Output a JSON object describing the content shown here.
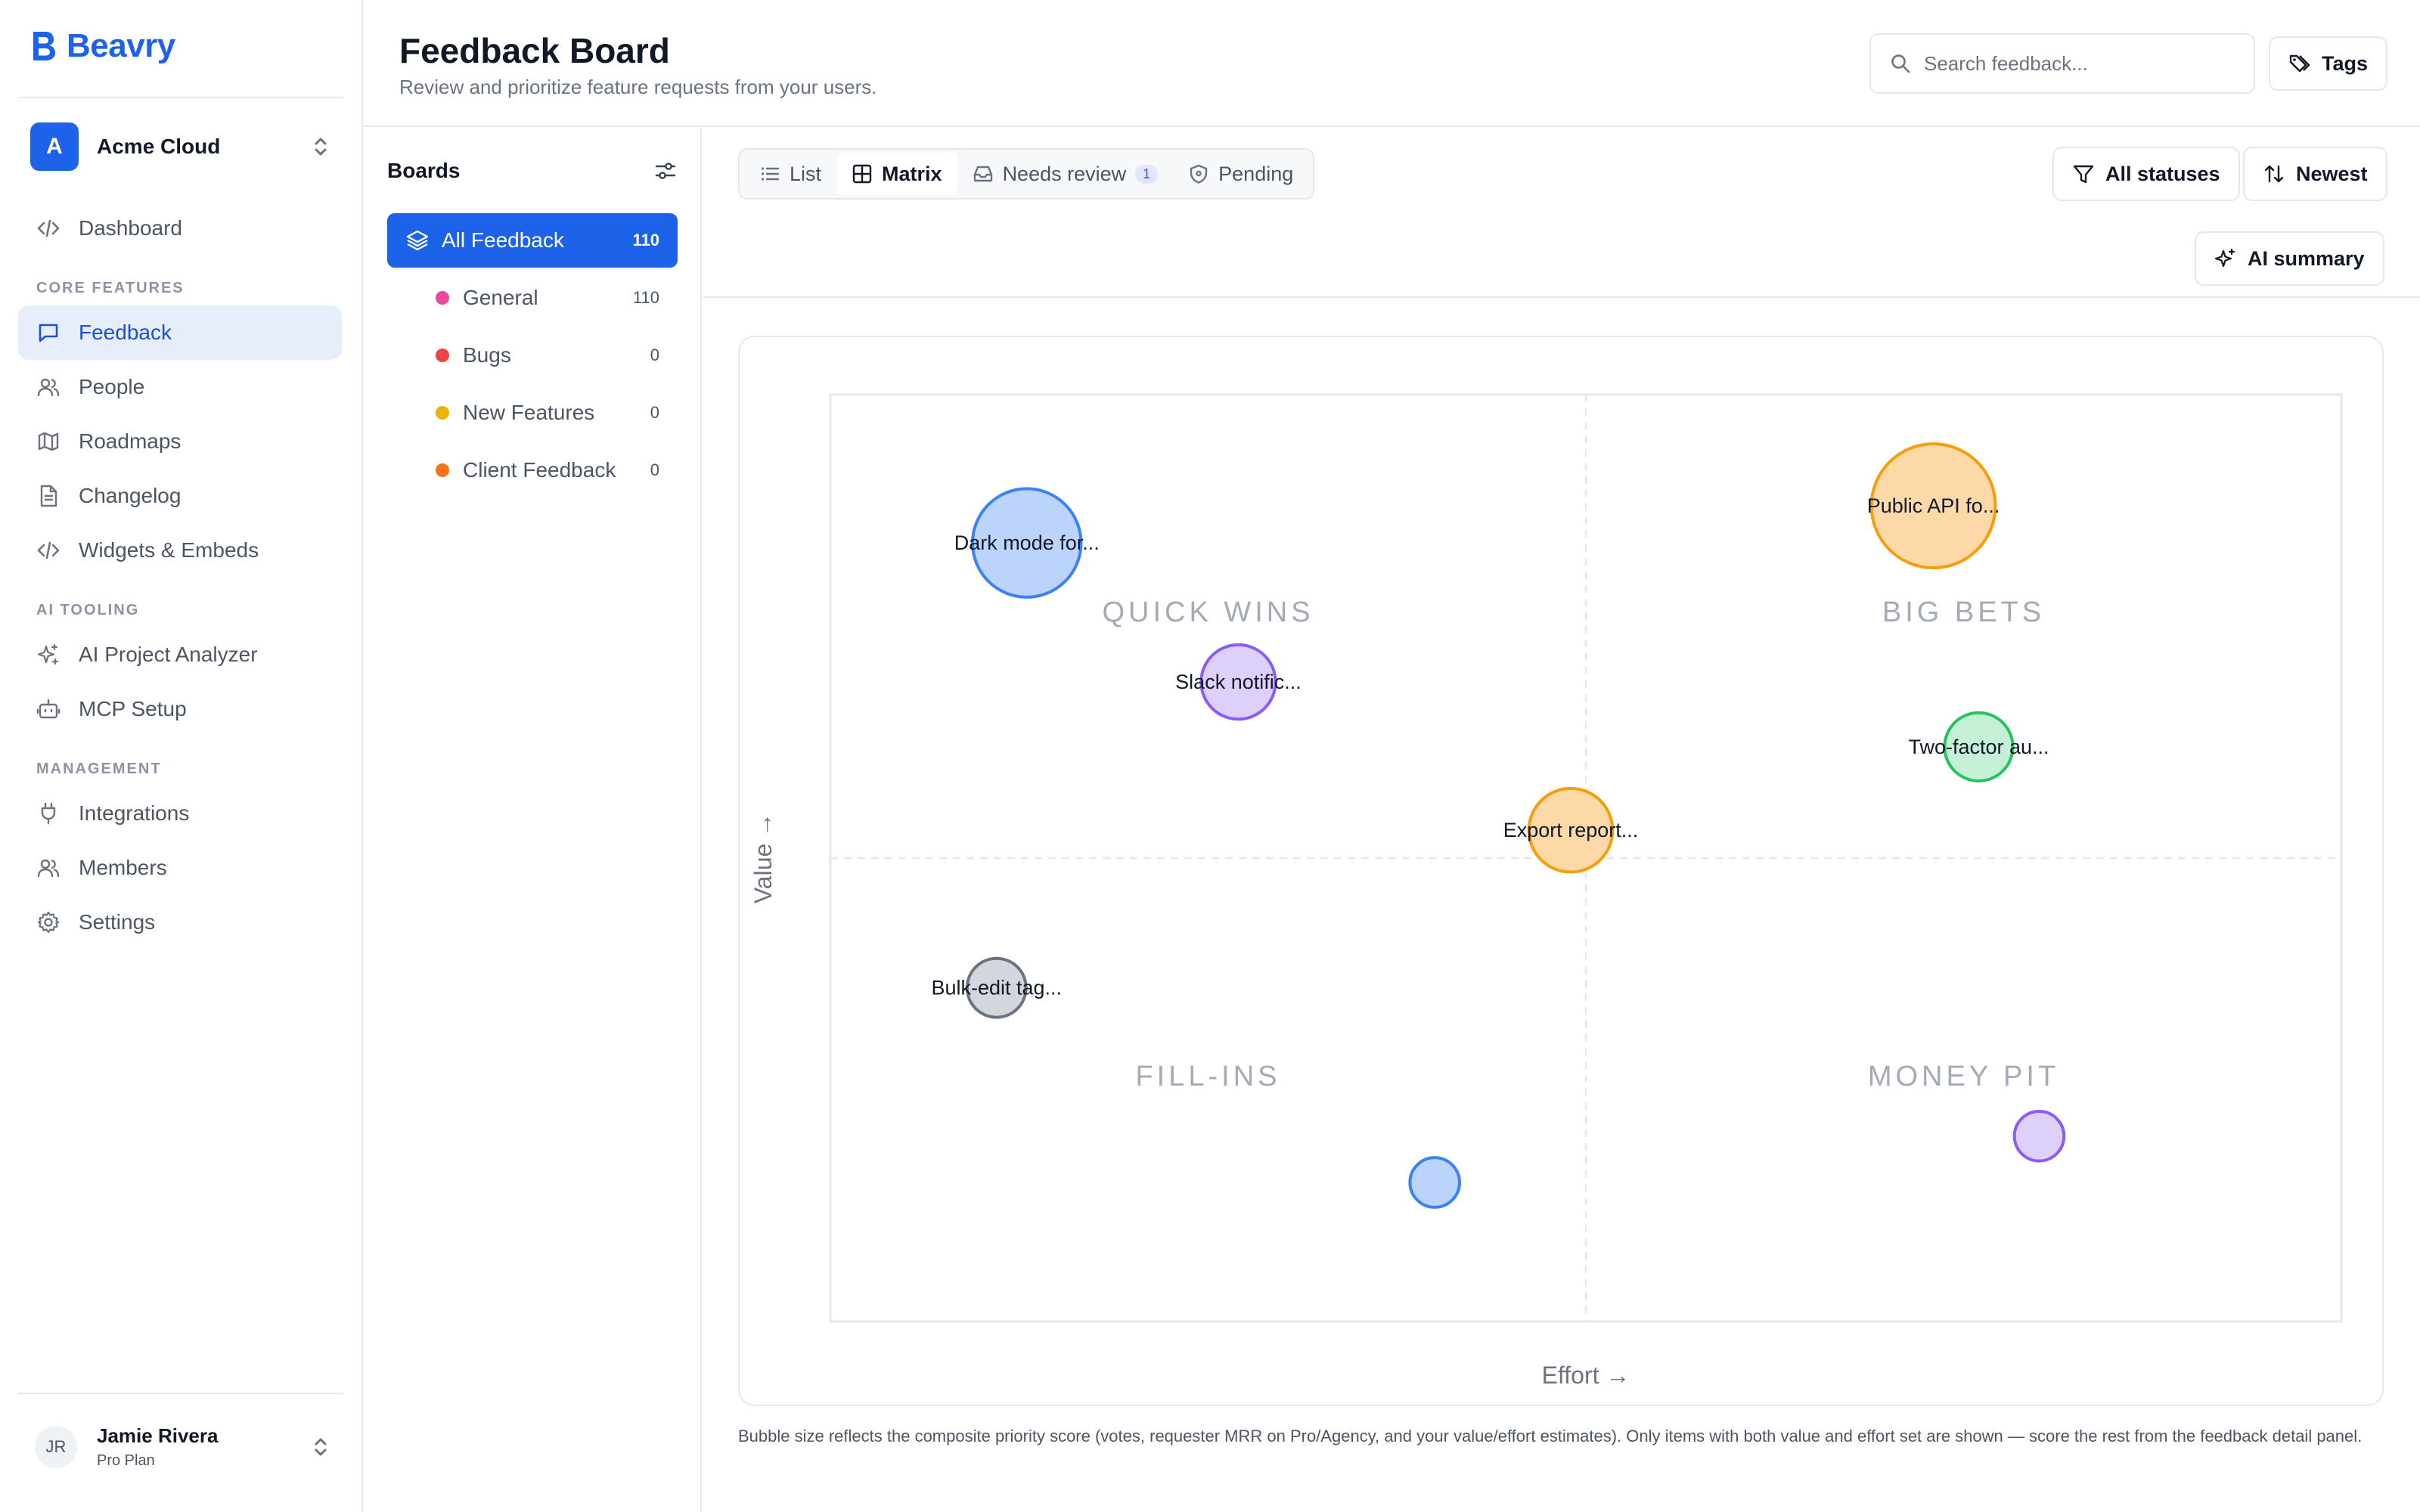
{
  "app": {
    "name": "Beavry"
  },
  "workspace": {
    "initial": "A",
    "name": "Acme Cloud"
  },
  "nav": {
    "dashboard": "Dashboard",
    "core_label": "CORE FEATURES",
    "feedback": "Feedback",
    "people": "People",
    "roadmaps": "Roadmaps",
    "changelog": "Changelog",
    "widgets": "Widgets & Embeds",
    "ai_label": "AI TOOLING",
    "ai_analyzer": "AI Project Analyzer",
    "mcp": "MCP Setup",
    "mgmt_label": "MANAGEMENT",
    "integrations": "Integrations",
    "members": "Members",
    "settings": "Settings"
  },
  "user": {
    "initials": "JR",
    "name": "Jamie Rivera",
    "plan": "Pro Plan"
  },
  "header": {
    "title": "Feedback Board",
    "subtitle": "Review and prioritize feature requests from your users.",
    "search_placeholder": "Search feedback...",
    "tags_label": "Tags"
  },
  "boards": {
    "title": "Boards",
    "all": {
      "name": "All Feedback",
      "count": "110"
    },
    "items": [
      {
        "name": "General",
        "count": "110",
        "color": "#ec4899"
      },
      {
        "name": "Bugs",
        "count": "0",
        "color": "#ef4444"
      },
      {
        "name": "New Features",
        "count": "0",
        "color": "#eab308"
      },
      {
        "name": "Client Feedback",
        "count": "0",
        "color": "#f97316"
      }
    ]
  },
  "toolbar": {
    "tabs": {
      "list": "List",
      "matrix": "Matrix",
      "needs_review": "Needs review",
      "needs_review_count": "1",
      "pending": "Pending"
    },
    "statuses": "All statuses",
    "sort": "Newest",
    "ai_summary": "AI summary"
  },
  "chart_data": {
    "type": "scatter",
    "x_axis_label": "Effort →",
    "y_axis_label": "Value →",
    "xlim": [
      0,
      100
    ],
    "ylim": [
      0,
      100
    ],
    "quadrants": [
      "QUICK WINS",
      "BIG BETS",
      "FILL-INS",
      "MONEY PIT"
    ],
    "points": [
      {
        "label": "Dark mode for...",
        "effort": 13,
        "value": 84,
        "size": 35,
        "color": "#3b82f6"
      },
      {
        "label": "Public API fo...",
        "effort": 73,
        "value": 88,
        "size": 40,
        "color": "#f59e0b"
      },
      {
        "label": "Slack notific...",
        "effort": 27,
        "value": 69,
        "size": 24,
        "color": "#8b5cf6"
      },
      {
        "label": "Two-factor au...",
        "effort": 76,
        "value": 62,
        "size": 22,
        "color": "#22c55e"
      },
      {
        "label": "Export report...",
        "effort": 49,
        "value": 53,
        "size": 27,
        "color": "#f59e0b"
      },
      {
        "label": "Bulk-edit tag...",
        "effort": 11,
        "value": 36,
        "size": 19,
        "color": "#6b7280"
      },
      {
        "label": "",
        "effort": 40,
        "value": 15,
        "size": 16,
        "color": "#3b82f6"
      },
      {
        "label": "",
        "effort": 80,
        "value": 20,
        "size": 16,
        "color": "#8b5cf6"
      }
    ]
  },
  "footnote": "Bubble size reflects the composite priority score (votes, requester MRR on Pro/Agency, and your value/effort estimates). Only items with both value and effort set are shown — score the rest from the feedback detail panel."
}
